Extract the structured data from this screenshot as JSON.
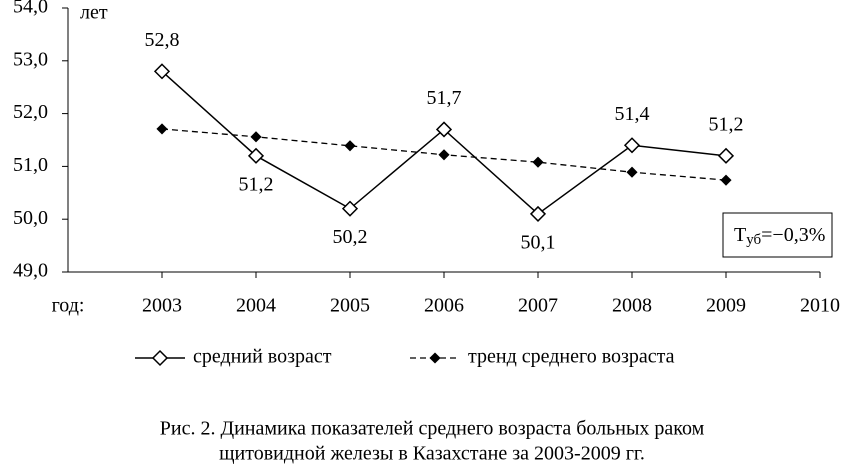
{
  "chart_data": {
    "type": "line",
    "ylabel": "лет",
    "xlabel": "год:",
    "x": [
      2003,
      2004,
      2005,
      2006,
      2007,
      2008,
      2009
    ],
    "xlim": [
      2002,
      2010
    ],
    "xticks": [
      2003,
      2004,
      2005,
      2006,
      2007,
      2008,
      2009,
      2010
    ],
    "ylim": [
      49,
      54
    ],
    "yticks": [
      {
        "value": 49,
        "label": "49,0"
      },
      {
        "value": 50,
        "label": "50,0"
      },
      {
        "value": 51,
        "label": "51,0"
      },
      {
        "value": 52,
        "label": "52,0"
      },
      {
        "value": 53,
        "label": "53,0"
      },
      {
        "value": 54,
        "label": "54,0"
      }
    ],
    "grid": false,
    "legend": "bottom",
    "series": [
      {
        "name": "средний возраст",
        "color": "#000000",
        "values": [
          52.8,
          51.2,
          50.2,
          51.7,
          50.1,
          51.4,
          51.2
        ],
        "value_labels": [
          "52,8",
          "51,2",
          "50,2",
          "51,7",
          "50,1",
          "51,4",
          "51,2"
        ]
      },
      {
        "name": "тренд среднего возраста",
        "color": "#000000",
        "values": [
          51.71,
          51.56,
          51.39,
          51.22,
          51.08,
          50.89,
          50.74
        ]
      }
    ],
    "annotation": {
      "main": "T",
      "sub": "уб",
      "rest": "=−0,3%"
    },
    "caption": [
      "Рис. 2. Динамика показателей среднего возраста больных раком",
      "щитовидной железы в Казахстане за 2003-2009 гг."
    ]
  }
}
